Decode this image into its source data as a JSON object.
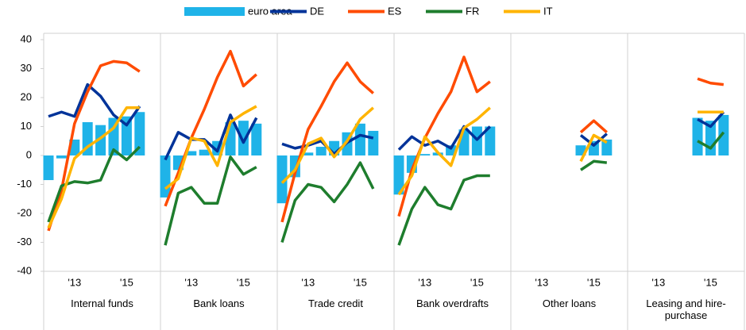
{
  "chart_data": [
    {
      "type": "combo",
      "title": "Internal funds",
      "categories": [
        null,
        null,
        "'13",
        null,
        null,
        null,
        "'15",
        null
      ],
      "ylim": [
        -40,
        40
      ],
      "yticks": [
        -40,
        -30,
        -20,
        -10,
        0,
        10,
        20,
        30,
        40
      ],
      "series": [
        {
          "name": "euro area",
          "type": "bar",
          "color": "#1fb3e8",
          "values": [
            -8.5,
            -1,
            5.5,
            11.5,
            10.5,
            13,
            13.5,
            15
          ]
        },
        {
          "name": "DE",
          "type": "line",
          "color": "#003399",
          "values": [
            13.5,
            15,
            13.5,
            24.5,
            20.5,
            14,
            10.5,
            17
          ]
        },
        {
          "name": "ES",
          "type": "line",
          "color": "#ff4b00",
          "values": [
            -26,
            -12,
            11,
            22,
            31,
            32.5,
            32,
            29
          ]
        },
        {
          "name": "FR",
          "type": "line",
          "color": "#1e7d2d",
          "values": [
            -23,
            -10.5,
            -9,
            -9.5,
            -8.5,
            2,
            -1.5,
            3
          ]
        },
        {
          "name": "IT",
          "type": "line",
          "color": "#ffb400",
          "values": [
            -25,
            -15,
            -1,
            3,
            6,
            9.5,
            16.5,
            16.5
          ]
        }
      ]
    },
    {
      "type": "combo",
      "title": "Bank loans",
      "categories": [
        null,
        null,
        "'13",
        null,
        null,
        null,
        "'15",
        null
      ],
      "ylim": [
        -40,
        40
      ],
      "series": [
        {
          "name": "euro area",
          "type": "bar",
          "color": "#1fb3e8",
          "values": [
            -14.5,
            -5,
            1.5,
            2,
            5,
            11.5,
            12,
            11
          ]
        },
        {
          "name": "DE",
          "type": "line",
          "color": "#003399",
          "values": [
            -1.5,
            8,
            5.5,
            5.5,
            1.5,
            14,
            4.5,
            13
          ]
        },
        {
          "name": "ES",
          "type": "line",
          "color": "#ff4b00",
          "values": [
            -17.5,
            -6,
            6,
            16,
            27,
            36,
            24,
            28
          ]
        },
        {
          "name": "FR",
          "type": "line",
          "color": "#1e7d2d",
          "values": [
            -31,
            -13,
            -11,
            -16.5,
            -16.5,
            -0.5,
            -6.5,
            -4
          ]
        },
        {
          "name": "IT",
          "type": "line",
          "color": "#ffb400",
          "values": [
            -11.5,
            -8,
            6,
            5,
            -3.5,
            11.5,
            14.5,
            17
          ]
        }
      ]
    },
    {
      "type": "combo",
      "title": "Trade credit",
      "categories": [
        null,
        null,
        "'13",
        null,
        null,
        null,
        "'15",
        null
      ],
      "ylim": [
        -40,
        40
      ],
      "series": [
        {
          "name": "euro area",
          "type": "bar",
          "color": "#1fb3e8",
          "values": [
            -16.5,
            -7.5,
            1,
            3,
            5,
            8,
            11,
            8.5
          ]
        },
        {
          "name": "DE",
          "type": "line",
          "color": "#003399",
          "values": [
            4,
            2.5,
            3.5,
            5,
            0.5,
            4.5,
            7,
            6
          ]
        },
        {
          "name": "ES",
          "type": "line",
          "color": "#ff4b00",
          "values": [
            -23,
            -6,
            9,
            17,
            25.5,
            32,
            25.5,
            21.5
          ]
        },
        {
          "name": "FR",
          "type": "line",
          "color": "#1e7d2d",
          "values": [
            -30,
            -15.5,
            -10,
            -11,
            -16,
            -10,
            -2.5,
            -11.5
          ]
        },
        {
          "name": "IT",
          "type": "line",
          "color": "#ffb400",
          "values": [
            -9.5,
            -5,
            4,
            6,
            -0.5,
            5,
            12.5,
            16.5
          ]
        }
      ]
    },
    {
      "type": "combo",
      "title": "Bank overdrafts",
      "categories": [
        null,
        null,
        "'13",
        null,
        null,
        null,
        "'15",
        null
      ],
      "ylim": [
        -40,
        40
      ],
      "series": [
        {
          "name": "euro area",
          "type": "bar",
          "color": "#1fb3e8",
          "values": [
            -13.5,
            -6,
            0.5,
            1,
            3.5,
            9,
            10,
            10
          ]
        },
        {
          "name": "DE",
          "type": "line",
          "color": "#003399",
          "values": [
            2,
            6.5,
            3.5,
            5,
            2.5,
            10,
            5.5,
            10
          ]
        },
        {
          "name": "ES",
          "type": "line",
          "color": "#ff4b00",
          "values": [
            -21,
            -5,
            6,
            14.5,
            22,
            34,
            22,
            25.5
          ]
        },
        {
          "name": "FR",
          "type": "line",
          "color": "#1e7d2d",
          "values": [
            -31,
            -18.5,
            -11,
            -17,
            -18.5,
            -8.5,
            -7,
            -7
          ]
        },
        {
          "name": "IT",
          "type": "line",
          "color": "#ffb400",
          "values": [
            -13.5,
            -7,
            6.5,
            1,
            -3.5,
            9.5,
            12.5,
            16.5
          ]
        }
      ]
    },
    {
      "type": "combo",
      "title": "Other loans",
      "categories": [
        null,
        null,
        "'13",
        null,
        null,
        null,
        "'15",
        null
      ],
      "ylim": [
        -40,
        40
      ],
      "series": [
        {
          "name": "euro area",
          "type": "bar",
          "color": "#1fb3e8",
          "values": [
            null,
            null,
            null,
            null,
            null,
            3.5,
            5,
            5.5
          ]
        },
        {
          "name": "DE",
          "type": "line",
          "color": "#003399",
          "values": [
            null,
            null,
            null,
            null,
            null,
            7,
            3.5,
            7.5
          ]
        },
        {
          "name": "ES",
          "type": "line",
          "color": "#ff4b00",
          "values": [
            null,
            null,
            null,
            null,
            null,
            8,
            12,
            8
          ]
        },
        {
          "name": "FR",
          "type": "line",
          "color": "#1e7d2d",
          "values": [
            null,
            null,
            null,
            null,
            null,
            -5,
            -2,
            -2.5
          ]
        },
        {
          "name": "IT",
          "type": "line",
          "color": "#ffb400",
          "values": [
            null,
            null,
            null,
            null,
            null,
            -2,
            7,
            4.5
          ]
        }
      ]
    },
    {
      "type": "combo",
      "title": "Leasing and hire-purchase",
      "categories": [
        null,
        null,
        "'13",
        null,
        null,
        null,
        "'15",
        null
      ],
      "ylim": [
        -40,
        40
      ],
      "series": [
        {
          "name": "euro area",
          "type": "bar",
          "color": "#1fb3e8",
          "values": [
            null,
            null,
            null,
            null,
            null,
            13,
            12,
            14
          ]
        },
        {
          "name": "DE",
          "type": "line",
          "color": "#003399",
          "values": [
            null,
            null,
            null,
            null,
            null,
            12.5,
            10,
            15
          ]
        },
        {
          "name": "ES",
          "type": "line",
          "color": "#ff4b00",
          "values": [
            null,
            null,
            null,
            null,
            null,
            26.5,
            25,
            24.5
          ]
        },
        {
          "name": "FR",
          "type": "line",
          "color": "#1e7d2d",
          "values": [
            null,
            null,
            null,
            null,
            null,
            5,
            2.5,
            8
          ]
        },
        {
          "name": "IT",
          "type": "line",
          "color": "#ffb400",
          "values": [
            null,
            null,
            null,
            null,
            null,
            15,
            15,
            15
          ]
        }
      ]
    }
  ]
}
